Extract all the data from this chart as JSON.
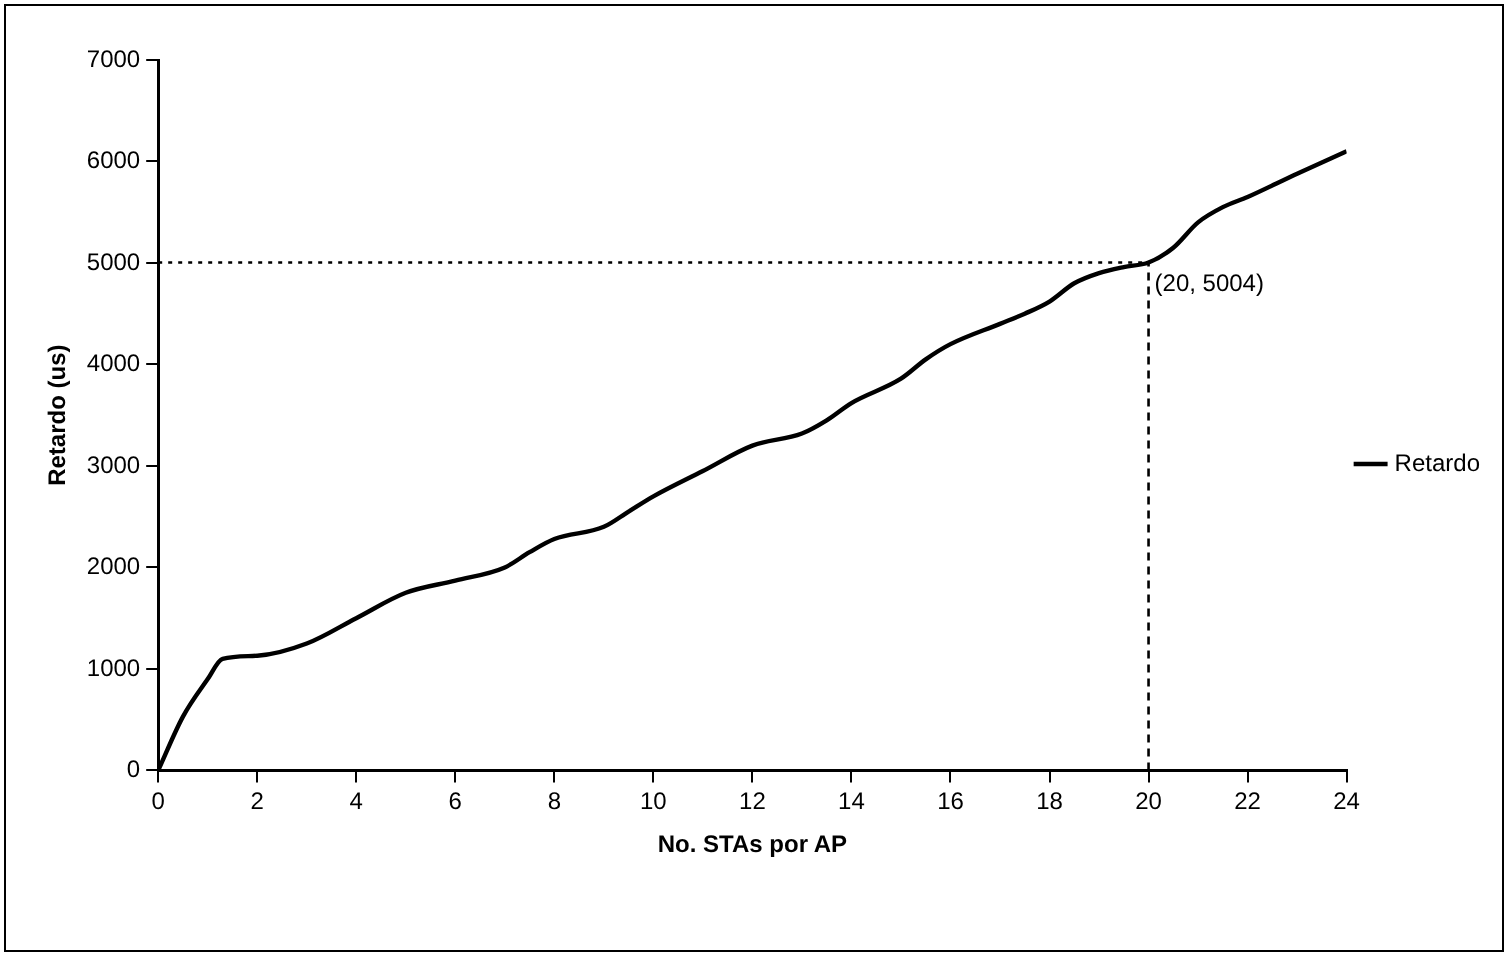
{
  "chart_data": {
    "type": "line",
    "xlabel": "No. STAs por AP",
    "ylabel": "Retardo (us)",
    "series": [
      {
        "name": "Retardo",
        "color": "#000000",
        "x": [
          0,
          0.5,
          1,
          1.3,
          2,
          3,
          4,
          5,
          6,
          7,
          7.5,
          8,
          9,
          9.5,
          10,
          11,
          12,
          13,
          13.5,
          14,
          15,
          15.5,
          16,
          17,
          17.5,
          18,
          18.5,
          19,
          19.5,
          20,
          20.5,
          21,
          21.5,
          22,
          23,
          24
        ],
        "values": [
          0,
          530,
          900,
          1100,
          1130,
          1250,
          1500,
          1750,
          1870,
          2000,
          2150,
          2280,
          2400,
          2550,
          2700,
          2950,
          3200,
          3320,
          3450,
          3620,
          3860,
          4050,
          4200,
          4400,
          4500,
          4620,
          4800,
          4900,
          4960,
          5004,
          5150,
          5400,
          5550,
          5650,
          5880,
          6100
        ]
      }
    ],
    "xlim": [
      0,
      24
    ],
    "xticks": [
      0,
      2,
      4,
      6,
      8,
      10,
      12,
      14,
      16,
      18,
      20,
      22,
      24
    ],
    "ylim": [
      0,
      7000
    ],
    "yticks": [
      0,
      1000,
      2000,
      3000,
      4000,
      5000,
      6000,
      7000
    ],
    "ref_lines": [
      {
        "axis": "y",
        "value": 5004,
        "line_style": "dotted"
      },
      {
        "axis": "x",
        "value": 20,
        "line_style": "dashed"
      }
    ],
    "annotations": [
      {
        "text": "(20, 5004)",
        "x": 20,
        "y": 5004
      }
    ],
    "grid": false,
    "legend": "right",
    "marker": "none",
    "line_style": "solid"
  }
}
